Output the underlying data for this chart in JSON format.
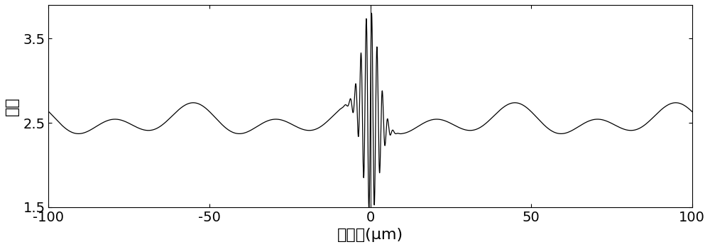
{
  "title": "",
  "xlabel": "光程差(μm)",
  "ylabel": "光强",
  "xlim": [
    -100,
    100
  ],
  "ylim": [
    1.5,
    3.9
  ],
  "yticks": [
    1.5,
    2.5,
    3.5
  ],
  "xticks": [
    -100,
    -50,
    0,
    50,
    100
  ],
  "line_color": "#000000",
  "vertical_line_color": "#000000",
  "background_color": "#ffffff",
  "xlabel_fontsize": 16,
  "ylabel_fontsize": 16,
  "tick_fontsize": 14
}
